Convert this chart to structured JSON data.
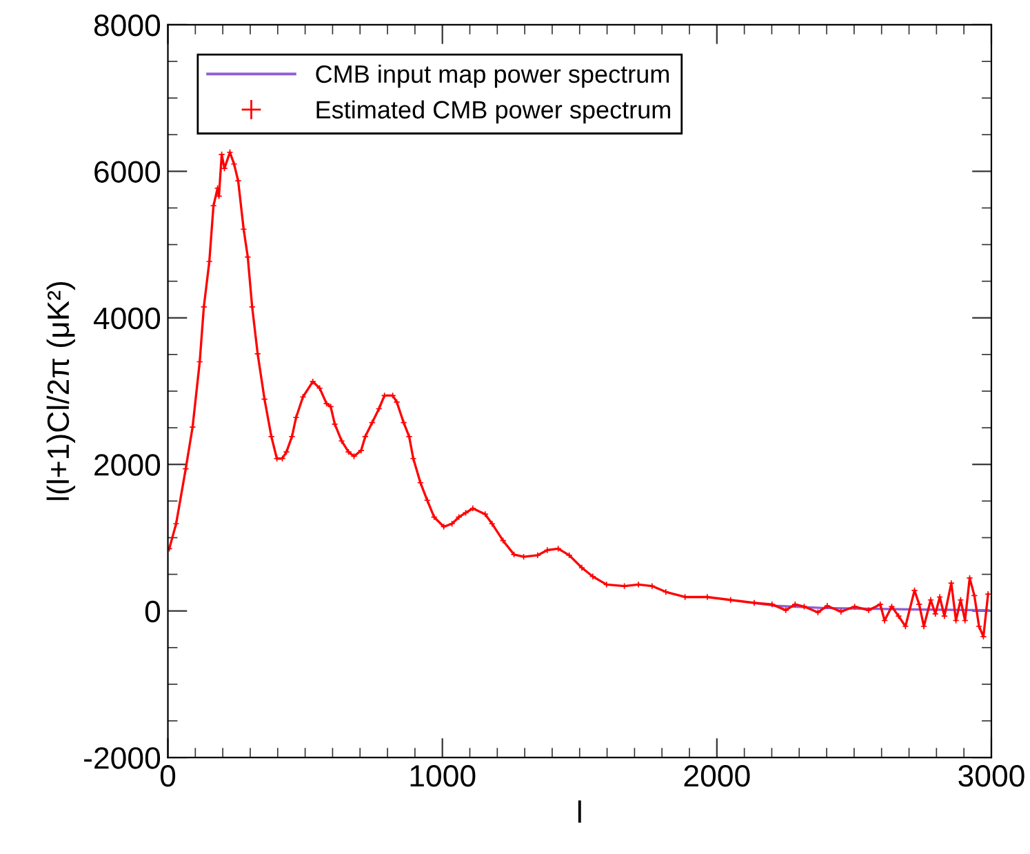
{
  "chart_data": {
    "type": "line",
    "xlabel": "l",
    "ylabel": "l(l+1)Cl/2π (μK²)",
    "xlim": [
      0,
      3000
    ],
    "xticks": [
      0,
      1000,
      2000,
      3000
    ],
    "ylim": [
      -2000,
      8000
    ],
    "yticks": [
      -2000,
      0,
      2000,
      4000,
      6000,
      8000
    ],
    "grid": false,
    "legend": "top left",
    "series": [
      {
        "name": "CMB input map power spectrum",
        "color": "#9060d0",
        "marker": "none",
        "x": [
          2136,
          2216,
          2387,
          2553,
          2719,
          2990
        ],
        "values": [
          110,
          70,
          40,
          30,
          20,
          10
        ]
      },
      {
        "name": "Estimated CMB power spectrum",
        "color": "#ff0000",
        "marker": "cross",
        "x": [
          5,
          30,
          65,
          90,
          116,
          131,
          151,
          166,
          181,
          186,
          196,
          206,
          226,
          241,
          256,
          276,
          291,
          307,
          327,
          352,
          377,
          397,
          417,
          432,
          452,
          467,
          492,
          528,
          553,
          578,
          593,
          608,
          633,
          658,
          678,
          704,
          719,
          744,
          769,
          789,
          819,
          834,
          859,
          879,
          894,
          920,
          945,
          970,
          1005,
          1035,
          1060,
          1085,
          1111,
          1156,
          1181,
          1221,
          1261,
          1296,
          1347,
          1382,
          1422,
          1462,
          1508,
          1548,
          1598,
          1663,
          1714,
          1764,
          1814,
          1884,
          1965,
          2050,
          2136,
          2201,
          2251,
          2285,
          2318,
          2368,
          2402,
          2452,
          2502,
          2553,
          2595,
          2611,
          2637,
          2662,
          2687,
          2720,
          2737,
          2754,
          2779,
          2796,
          2812,
          2829,
          2854,
          2871,
          2888,
          2904,
          2921,
          2938,
          2955,
          2971,
          2988
        ],
        "values": [
          850,
          1190,
          1940,
          2510,
          3400,
          4150,
          4770,
          5530,
          5770,
          5660,
          6230,
          6040,
          6260,
          6100,
          5870,
          5210,
          4830,
          4150,
          3510,
          2890,
          2380,
          2080,
          2080,
          2170,
          2380,
          2640,
          2920,
          3130,
          3040,
          2830,
          2790,
          2550,
          2320,
          2170,
          2110,
          2190,
          2380,
          2570,
          2760,
          2940,
          2940,
          2850,
          2570,
          2380,
          2080,
          1750,
          1510,
          1280,
          1150,
          1190,
          1280,
          1340,
          1400,
          1320,
          1190,
          960,
          770,
          740,
          760,
          830,
          850,
          760,
          590,
          470,
          360,
          340,
          360,
          340,
          260,
          190,
          190,
          150,
          110,
          90,
          10,
          90,
          60,
          -20,
          70,
          -10,
          60,
          10,
          90,
          -130,
          60,
          -70,
          -210,
          280,
          90,
          -210,
          150,
          -40,
          190,
          -70,
          380,
          -130,
          150,
          -130,
          450,
          210,
          -210,
          -350,
          230
        ]
      }
    ]
  }
}
